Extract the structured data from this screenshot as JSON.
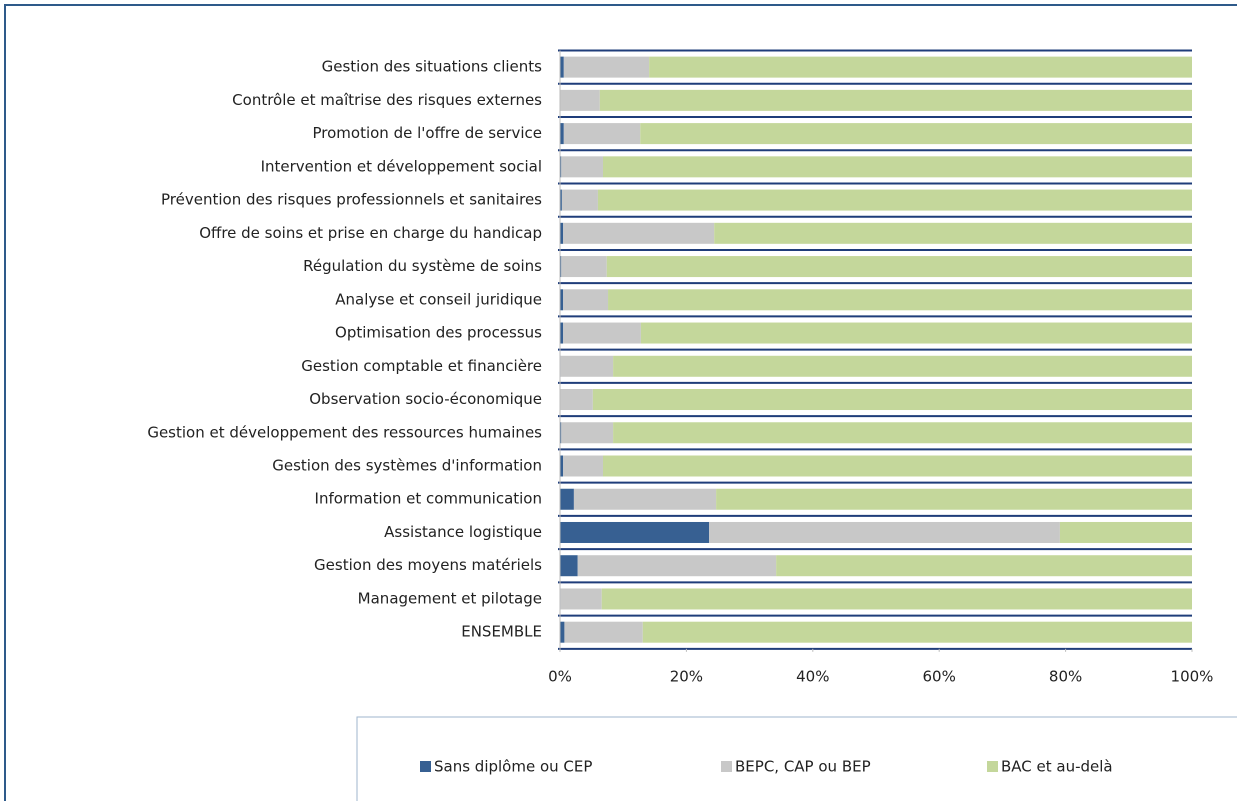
{
  "chart_data": {
    "type": "bar",
    "orientation": "horizontal",
    "stacked": true,
    "categories": [
      "Gestion des situations clients",
      "Contrôle et maîtrise des risques externes",
      "Promotion de l'offre de service",
      "Intervention et développement social",
      "Prévention des risques professionnels et sanitaires",
      "Offre de soins et prise en charge du handicap",
      "Régulation du système de soins",
      "Analyse et conseil juridique",
      "Optimisation des processus",
      "Gestion comptable et financière",
      "Observation socio-économique",
      "Gestion et développement des ressources humaines",
      "Gestion des systèmes d'information",
      "Information et communication",
      "Assistance logistique",
      "Gestion des moyens matériels",
      "Management et pilotage",
      "ENSEMBLE"
    ],
    "series": [
      {
        "name": "Sans diplôme ou CEP",
        "color": "#376092",
        "values": [
          0.6,
          0,
          0.6,
          0.2,
          0.3,
          0.5,
          0.2,
          0.5,
          0.5,
          0.1,
          0,
          0.2,
          0.5,
          2.2,
          23.6,
          2.8,
          0.1,
          0.7
        ]
      },
      {
        "name": "BEPC, CAP ou BEP",
        "color": "#c8c8c8",
        "values": [
          13.5,
          6.3,
          12.1,
          6.6,
          5.7,
          23.9,
          7.2,
          7.1,
          12.3,
          8.3,
          5.2,
          8.2,
          6.3,
          22.5,
          55.5,
          31.4,
          6.5,
          12.4
        ]
      },
      {
        "name": "BAC et au-delà",
        "color": "#c4d79b",
        "values": [
          85.9,
          93.7,
          87.3,
          93.2,
          94.0,
          75.6,
          92.6,
          92.4,
          87.2,
          91.6,
          94.8,
          91.6,
          93.2,
          75.3,
          20.9,
          65.8,
          93.4,
          86.9
        ]
      }
    ],
    "xlim": [
      0,
      100
    ],
    "xticks": [
      {
        "value": 0,
        "label": "0%"
      },
      {
        "value": 20,
        "label": "20%"
      },
      {
        "value": 40,
        "label": "40%"
      },
      {
        "value": 60,
        "label": "60%"
      },
      {
        "value": 80,
        "label": "80%"
      },
      {
        "value": 100,
        "label": "100%"
      }
    ],
    "legend": "bottom"
  }
}
